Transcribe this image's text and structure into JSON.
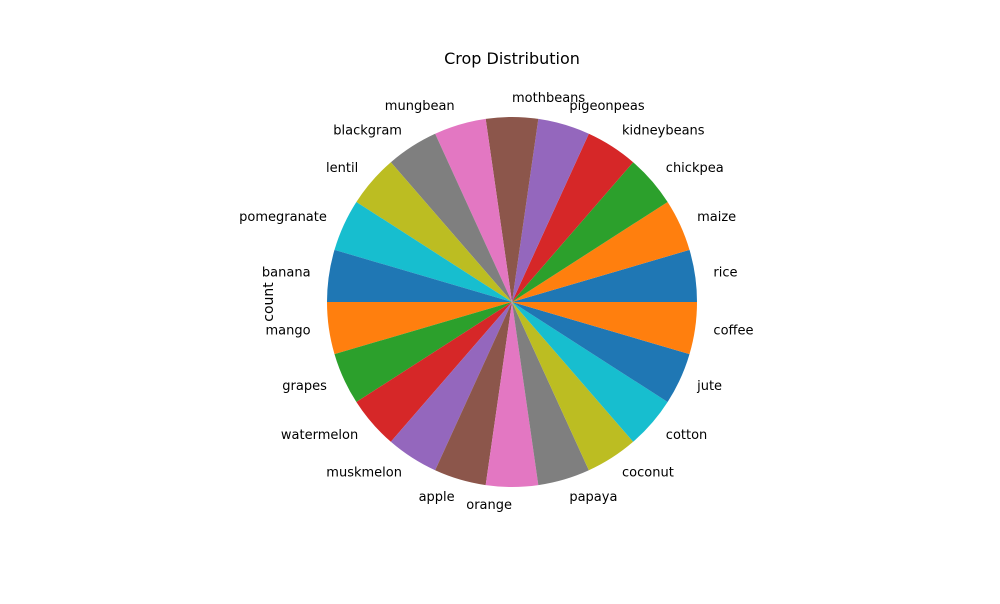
{
  "chart_data": {
    "type": "pie",
    "title": "Crop Distribution",
    "ylabel": "count",
    "start_angle_deg": 0,
    "direction": "counterclockwise",
    "categories": [
      "rice",
      "maize",
      "chickpea",
      "kidneybeans",
      "pigeonpeas",
      "mothbeans",
      "mungbean",
      "blackgram",
      "lentil",
      "pomegranate",
      "banana",
      "mango",
      "grapes",
      "watermelon",
      "muskmelon",
      "apple",
      "orange",
      "papaya",
      "coconut",
      "cotton",
      "jute",
      "coffee"
    ],
    "values": [
      100,
      100,
      100,
      100,
      100,
      100,
      100,
      100,
      100,
      100,
      100,
      100,
      100,
      100,
      100,
      100,
      100,
      100,
      100,
      100,
      100,
      100
    ],
    "colors": [
      "#1f77b4",
      "#ff7f0e",
      "#2ca02c",
      "#d62728",
      "#9467bd",
      "#8c564b",
      "#e377c2",
      "#7f7f7f",
      "#bcbd22",
      "#17becf",
      "#1f77b4",
      "#ff7f0e",
      "#2ca02c",
      "#d62728",
      "#9467bd",
      "#8c564b",
      "#e377c2",
      "#7f7f7f",
      "#bcbd22",
      "#17becf",
      "#1f77b4",
      "#ff7f0e"
    ]
  }
}
